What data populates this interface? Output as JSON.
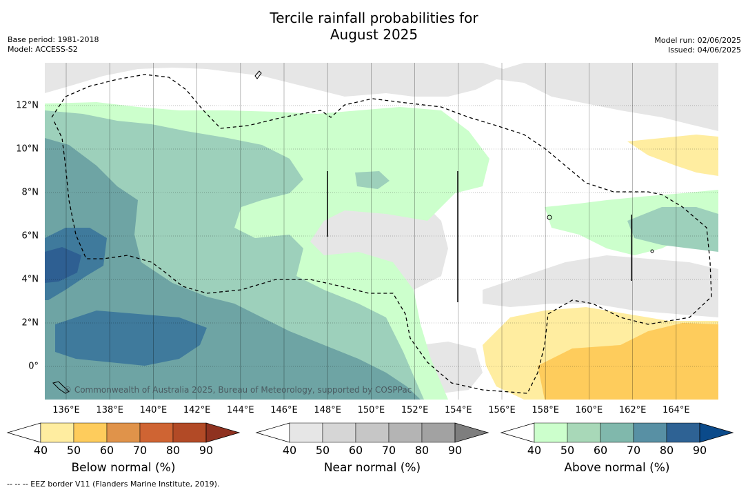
{
  "title_line1": "Tercile rainfall probabilities for",
  "title_line2": "August 2025",
  "base_period": "Base period: 1981-2018",
  "model": "Model: ACCESS-S2",
  "model_run": "Model run: 02/06/2025",
  "issued": "Issued: 04/06/2025",
  "copyright": "© Commonwealth of Australia 2025, Bureau of Meteorology, supported by COSPPac",
  "footnote": "--  --  -- EEZ border V11 (Flanders Marine Institute, 2019).",
  "lon_labels": [
    "136°E",
    "138°E",
    "140°E",
    "142°E",
    "144°E",
    "146°E",
    "148°E",
    "150°E",
    "152°E",
    "154°E",
    "156°E",
    "158°E",
    "160°E",
    "162°E",
    "164°E"
  ],
  "lat_labels": [
    "12°N",
    "10°N",
    "8°N",
    "6°N",
    "4°N",
    "2°N",
    "0°"
  ],
  "colorbars": [
    {
      "title": "Below normal (%)",
      "ticks": [
        "40",
        "50",
        "60",
        "70",
        "80",
        "90"
      ],
      "colors": [
        "#ffeda0",
        "#fecc5c",
        "#e0934a",
        "#cf6433",
        "#b24a26"
      ],
      "extend_color": "#8f3220"
    },
    {
      "title": "Near normal (%)",
      "ticks": [
        "40",
        "50",
        "60",
        "70",
        "80",
        "90"
      ],
      "colors": [
        "#e6e6e6",
        "#d6d6d6",
        "#c6c6c6",
        "#b4b4b4",
        "#a2a2a2"
      ],
      "extend_color": "#7e7e7e"
    },
    {
      "title": "Above normal (%)",
      "ticks": [
        "40",
        "50",
        "60",
        "70",
        "80",
        "90"
      ],
      "colors": [
        "#ccffcc",
        "#a8d8b8",
        "#80b8ac",
        "#5890a4",
        "#2e6294"
      ],
      "extend_color": "#0b4a8a"
    }
  ]
}
